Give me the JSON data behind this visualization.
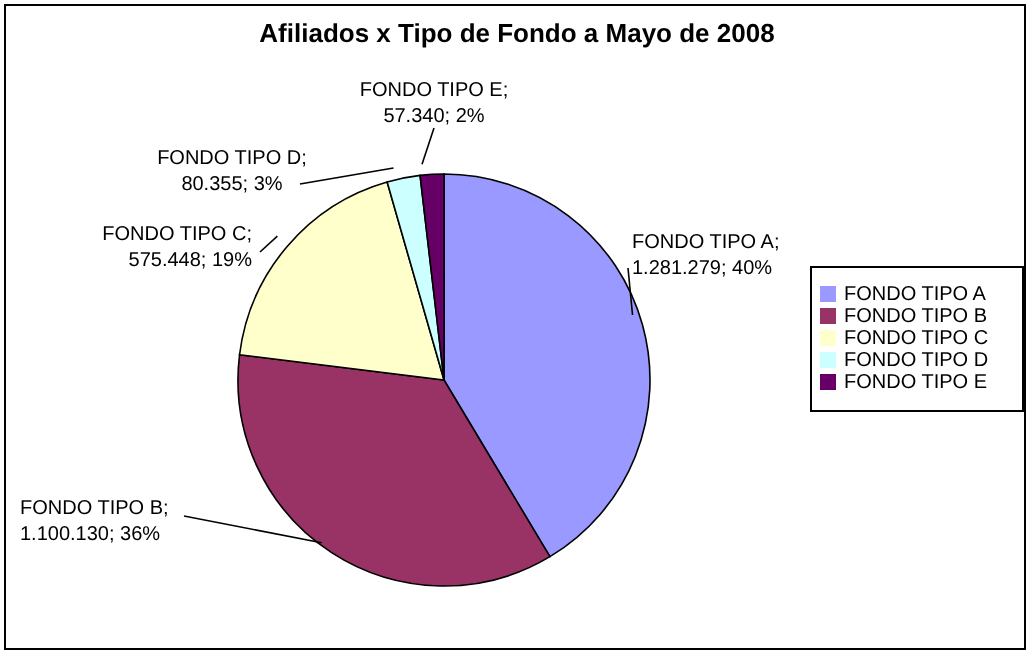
{
  "chart_data": {
    "type": "pie",
    "title": "Afiliados x Tipo de Fondo a Mayo de 2008",
    "categories": [
      "FONDO TIPO A",
      "FONDO TIPO B",
      "FONDO TIPO C",
      "FONDO TIPO D",
      "FONDO TIPO E"
    ],
    "values": [
      1281279,
      1100130,
      575448,
      80355,
      57340
    ],
    "value_labels": [
      "FONDO TIPO A; 1.281.279; 40%",
      "FONDO TIPO B; 1.100.130; 36%",
      "FONDO TIPO C; 575.448; 19%",
      "FONDO TIPO D; 80.355; 3%",
      "FONDO TIPO E; 57.340; 2%"
    ],
    "colors": [
      "#9999ff",
      "#993366",
      "#ffffcc",
      "#ccffff",
      "#660066"
    ],
    "legend": "right"
  }
}
